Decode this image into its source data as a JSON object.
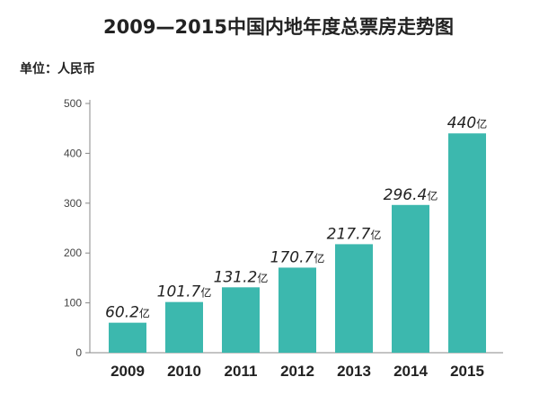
{
  "chart_data": {
    "type": "bar",
    "title": "2009—2015中国内地年度总票房走势图",
    "unit_label": "单位：人民币",
    "categories": [
      "2009",
      "2010",
      "2011",
      "2012",
      "2013",
      "2014",
      "2015"
    ],
    "values": [
      60.2,
      101.7,
      131.2,
      170.7,
      217.7,
      296.4,
      440
    ],
    "data_labels": [
      "60.2",
      "101.7",
      "131.2",
      "170.7",
      "217.7",
      "296.4",
      "440"
    ],
    "value_suffix": "亿",
    "yticks": [
      0,
      100,
      200,
      300,
      400,
      500
    ],
    "ylim": [
      0,
      500
    ],
    "bar_color": "#3cb8ae",
    "grid": false,
    "legend": "none"
  }
}
